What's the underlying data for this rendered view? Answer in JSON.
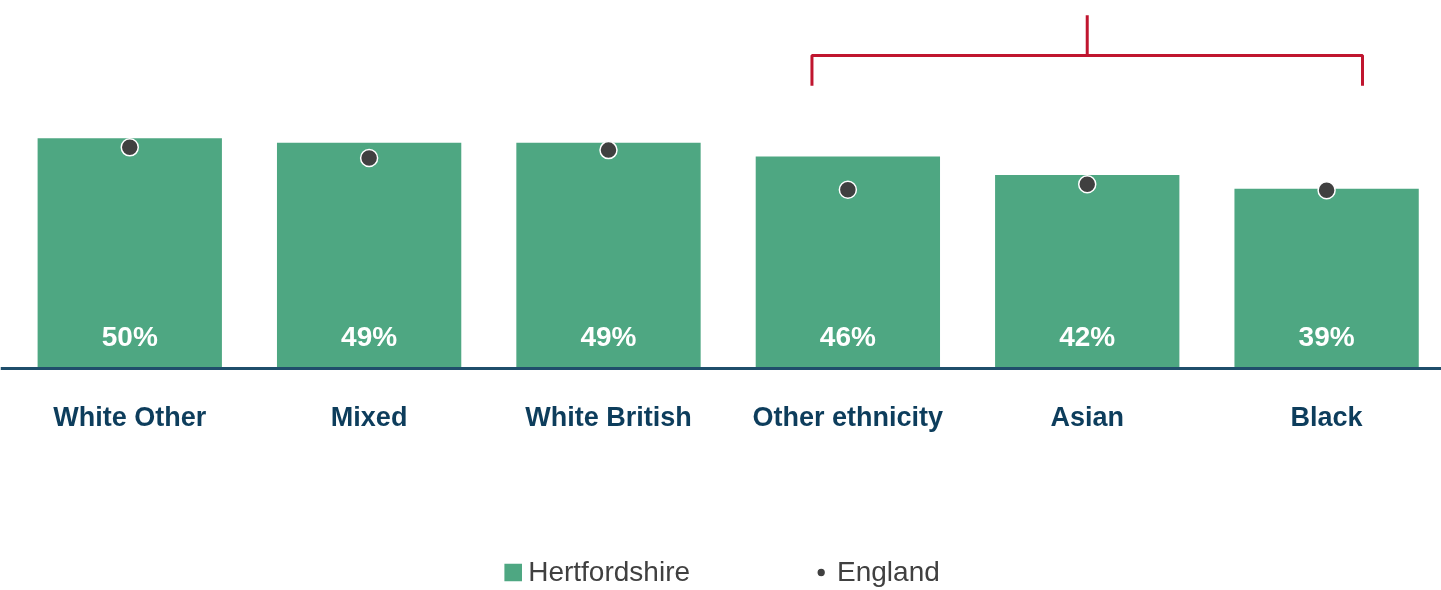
{
  "chart_data": {
    "type": "bar",
    "categories": [
      "White Other",
      "Mixed",
      "White British",
      "Other ethnicity",
      "Asian",
      "Black"
    ],
    "series": [
      {
        "name": "Hertfordshire",
        "color": "#4ea782",
        "values": [
          50,
          49,
          49,
          46,
          42,
          39
        ],
        "value_labels": [
          "50%",
          "49%",
          "49%",
          "46%",
          "42%",
          "39%"
        ]
      },
      {
        "name": "England",
        "type": "scatter",
        "color": "#404040",
        "marker": "circle",
        "values": [
          48,
          45.7,
          47.4,
          38.8,
          40,
          38.7
        ]
      }
    ],
    "grid": false,
    "legend": "bottom",
    "tick_labels": "x"
  }
}
